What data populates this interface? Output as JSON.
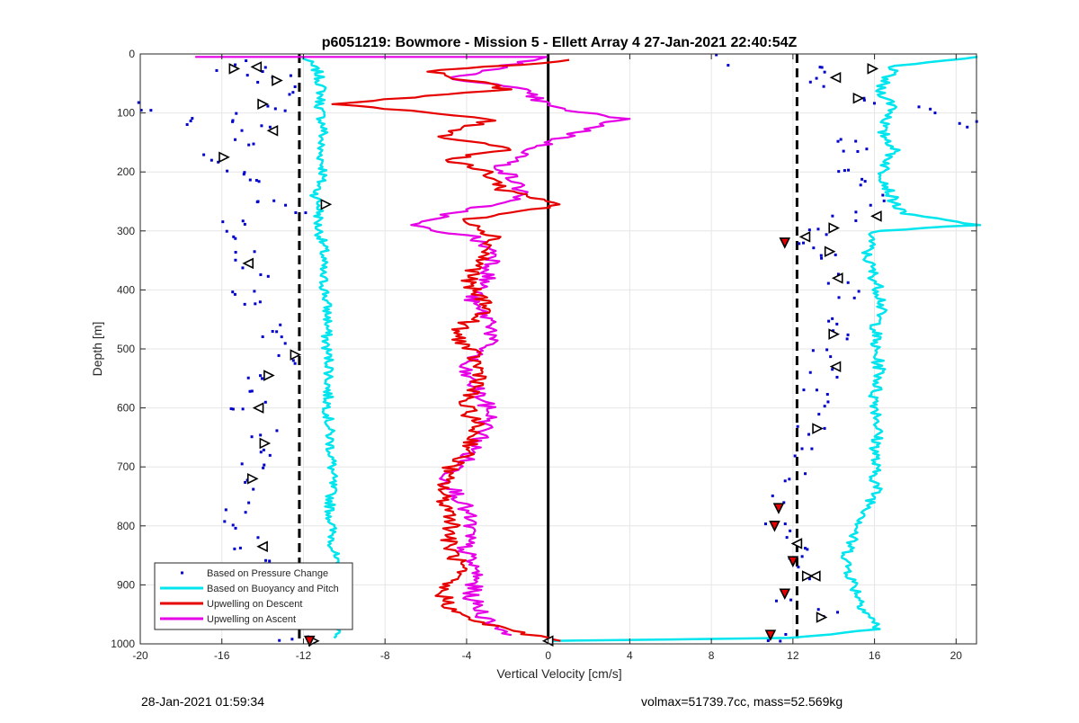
{
  "chart_data": {
    "type": "scatter",
    "title": "p6051219: Bowmore - Mission 5 - Ellett Array 4 27-Jan-2021 22:40:54Z",
    "xlabel": "Vertical Velocity [cm/s]",
    "ylabel": "Depth [m]",
    "xlim": [
      -20,
      21
    ],
    "ylim": [
      0,
      1000
    ],
    "y_reversed": true,
    "grid": true,
    "legend_position": "bottom-left",
    "x_ticks": [
      "-20",
      "-16",
      "-12",
      "-8",
      "-4",
      "0",
      "4",
      "8",
      "12",
      "16",
      "20"
    ],
    "y_ticks": [
      "0",
      "100",
      "200",
      "300",
      "400",
      "500",
      "600",
      "700",
      "800",
      "900",
      "1000"
    ],
    "reference_lines": [
      {
        "style": "dashed",
        "x": -12.2
      },
      {
        "style": "solid",
        "x": 0
      },
      {
        "style": "dashed",
        "x": 12.2
      }
    ],
    "series": [
      {
        "name": "Based on Pressure Change",
        "marker": "dot",
        "color": "#0000cc",
        "descent_points": [
          [
            -15.6,
            20
          ],
          [
            -14.2,
            40
          ],
          [
            -13.1,
            30
          ],
          [
            -12.6,
            60
          ],
          [
            -13.0,
            90
          ],
          [
            -15.3,
            110
          ],
          [
            -19.5,
            85
          ],
          [
            -17.4,
            120
          ],
          [
            -14.4,
            130
          ],
          [
            -15.0,
            150
          ],
          [
            -16.2,
            180
          ],
          [
            -15.2,
            200
          ],
          [
            -14.3,
            215
          ],
          [
            -13.7,
            240
          ],
          [
            -12.4,
            260
          ],
          [
            -15.2,
            280
          ],
          [
            -15.6,
            310
          ],
          [
            -14.9,
            340
          ],
          [
            -14.4,
            370
          ],
          [
            -15.1,
            400
          ],
          [
            -14.2,
            430
          ],
          [
            -13.8,
            460
          ],
          [
            -13.2,
            490
          ],
          [
            -13.0,
            520
          ],
          [
            -14.4,
            545
          ],
          [
            -14.6,
            580
          ],
          [
            -14.8,
            610
          ],
          [
            -14.1,
            640
          ],
          [
            -14.0,
            670
          ],
          [
            -14.5,
            700
          ],
          [
            -15.0,
            730
          ],
          [
            -15.3,
            770
          ],
          [
            -15.4,
            800
          ],
          [
            -14.6,
            830
          ],
          [
            -14.1,
            860
          ],
          [
            -13.8,
            900
          ],
          [
            -13.6,
            930
          ],
          [
            -13.2,
            960
          ],
          [
            -12.4,
            985
          ]
        ],
        "ascent_points": [
          [
            7.9,
            5
          ],
          [
            8.6,
            10
          ],
          [
            14.0,
            30
          ],
          [
            13.5,
            50
          ],
          [
            15.6,
            80
          ],
          [
            18.6,
            100
          ],
          [
            20.6,
            115
          ],
          [
            14.7,
            140
          ],
          [
            15.1,
            170
          ],
          [
            14.2,
            200
          ],
          [
            15.5,
            220
          ],
          [
            15.9,
            250
          ],
          [
            14.3,
            275
          ],
          [
            13.1,
            300
          ],
          [
            12.3,
            320
          ],
          [
            13.8,
            345
          ],
          [
            14.2,
            380
          ],
          [
            14.6,
            410
          ],
          [
            14.3,
            450
          ],
          [
            13.9,
            480
          ],
          [
            13.3,
            510
          ],
          [
            13.6,
            540
          ],
          [
            13.1,
            570
          ],
          [
            13.7,
            600
          ],
          [
            13.0,
            640
          ],
          [
            12.6,
            680
          ],
          [
            12.0,
            720
          ],
          [
            11.6,
            760
          ],
          [
            11.3,
            800
          ],
          [
            12.3,
            830
          ],
          [
            11.9,
            860
          ],
          [
            12.7,
            890
          ],
          [
            11.5,
            920
          ],
          [
            13.5,
            950
          ],
          [
            11.0,
            985
          ]
        ]
      },
      {
        "name": "Based on Buoyancy and Pitch",
        "color": "#00e5ee",
        "descent_profile": [
          [
            -12.0,
            5
          ],
          [
            -11.3,
            30
          ],
          [
            -11.1,
            60
          ],
          [
            -11.2,
            90
          ],
          [
            -11.0,
            130
          ],
          [
            -11.2,
            160
          ],
          [
            -11.0,
            200
          ],
          [
            -11.4,
            240
          ],
          [
            -11.2,
            260
          ],
          [
            -11.3,
            290
          ],
          [
            -11.0,
            330
          ],
          [
            -11.1,
            370
          ],
          [
            -10.9,
            410
          ],
          [
            -10.8,
            450
          ],
          [
            -10.9,
            490
          ],
          [
            -10.7,
            530
          ],
          [
            -10.8,
            570
          ],
          [
            -10.8,
            610
          ],
          [
            -10.7,
            650
          ],
          [
            -10.6,
            690
          ],
          [
            -10.6,
            730
          ],
          [
            -10.7,
            770
          ],
          [
            -10.6,
            810
          ],
          [
            -10.5,
            850
          ],
          [
            -10.5,
            890
          ],
          [
            -10.6,
            930
          ],
          [
            -10.4,
            960
          ],
          [
            -10.5,
            990
          ]
        ],
        "ascent_profile": [
          [
            21.0,
            5
          ],
          [
            17.0,
            20
          ],
          [
            16.2,
            60
          ],
          [
            17.0,
            90
          ],
          [
            16.3,
            130
          ],
          [
            17.0,
            160
          ],
          [
            16.4,
            200
          ],
          [
            16.8,
            240
          ],
          [
            17.3,
            270
          ],
          [
            21.0,
            290
          ],
          [
            16.0,
            300
          ],
          [
            15.6,
            340
          ],
          [
            16.0,
            380
          ],
          [
            16.4,
            420
          ],
          [
            16.1,
            460
          ],
          [
            16.0,
            500
          ],
          [
            16.3,
            540
          ],
          [
            16.0,
            580
          ],
          [
            16.2,
            620
          ],
          [
            16.1,
            660
          ],
          [
            16.0,
            700
          ],
          [
            16.1,
            740
          ],
          [
            15.6,
            780
          ],
          [
            14.9,
            820
          ],
          [
            14.6,
            860
          ],
          [
            15.0,
            900
          ],
          [
            15.5,
            940
          ],
          [
            16.2,
            975
          ],
          [
            11.9,
            990
          ],
          [
            0.0,
            995
          ]
        ]
      },
      {
        "name": "Upwelling on Descent",
        "color": "#e60000",
        "points": [
          [
            1.4,
            10
          ],
          [
            -5.9,
            30
          ],
          [
            -1.9,
            60
          ],
          [
            -10.5,
            85
          ],
          [
            -2.8,
            110
          ],
          [
            -5.2,
            140
          ],
          [
            -1.7,
            160
          ],
          [
            -5.0,
            180
          ],
          [
            -3.0,
            200
          ],
          [
            -2.2,
            230
          ],
          [
            0.7,
            255
          ],
          [
            -3.9,
            280
          ],
          [
            -2.6,
            310
          ],
          [
            -3.3,
            350
          ],
          [
            -4.0,
            390
          ],
          [
            -2.8,
            430
          ],
          [
            -4.6,
            470
          ],
          [
            -3.7,
            510
          ],
          [
            -3.2,
            550
          ],
          [
            -4.2,
            590
          ],
          [
            -3.5,
            630
          ],
          [
            -3.8,
            670
          ],
          [
            -5.0,
            710
          ],
          [
            -5.2,
            750
          ],
          [
            -4.6,
            790
          ],
          [
            -4.9,
            830
          ],
          [
            -4.3,
            870
          ],
          [
            -5.3,
            910
          ],
          [
            -4.5,
            950
          ],
          [
            -2.2,
            975
          ],
          [
            0.6,
            995
          ]
        ]
      },
      {
        "name": "Upwelling on Ascent",
        "color": "#e600e6",
        "points": [
          [
            -17.4,
            5
          ],
          [
            0.0,
            5
          ],
          [
            -4.7,
            40
          ],
          [
            -1.4,
            60
          ],
          [
            0.1,
            90
          ],
          [
            3.6,
            110
          ],
          [
            0.0,
            150
          ],
          [
            -2.3,
            190
          ],
          [
            -1.1,
            240
          ],
          [
            -6.9,
            290
          ],
          [
            -3.7,
            310
          ],
          [
            -2.5,
            340
          ],
          [
            -3.0,
            380
          ],
          [
            -3.8,
            420
          ],
          [
            -2.6,
            460
          ],
          [
            -3.1,
            500
          ],
          [
            -4.3,
            530
          ],
          [
            -3.5,
            570
          ],
          [
            -2.8,
            610
          ],
          [
            -3.3,
            650
          ],
          [
            -4.1,
            690
          ],
          [
            -5.0,
            720
          ],
          [
            -4.2,
            760
          ],
          [
            -3.8,
            800
          ],
          [
            -4.1,
            840
          ],
          [
            -3.5,
            880
          ],
          [
            -3.8,
            920
          ],
          [
            -3.0,
            960
          ],
          [
            -1.8,
            985
          ]
        ]
      }
    ],
    "triangle_markers": {
      "descent": [
        [
          -15.4,
          25
        ],
        [
          -14.3,
          22
        ],
        [
          -13.3,
          45
        ],
        [
          -14.0,
          85
        ],
        [
          -13.5,
          130
        ],
        [
          -15.9,
          175
        ],
        [
          -10.9,
          255
        ],
        [
          -14.7,
          355
        ],
        [
          -12.4,
          510
        ],
        [
          -13.7,
          545
        ],
        [
          -14.2,
          600
        ],
        [
          -13.9,
          660
        ],
        [
          -14.5,
          720
        ],
        [
          -14.0,
          835
        ],
        [
          -11.5,
          995
        ]
      ],
      "ascent": [
        [
          15.9,
          25
        ],
        [
          14.1,
          40
        ],
        [
          15.2,
          75
        ],
        [
          16.1,
          275
        ],
        [
          14.0,
          295
        ],
        [
          12.6,
          310
        ],
        [
          13.8,
          335
        ],
        [
          14.2,
          380
        ],
        [
          14.0,
          475
        ],
        [
          14.1,
          530
        ],
        [
          13.2,
          635
        ],
        [
          12.2,
          830
        ],
        [
          12.7,
          885
        ],
        [
          13.1,
          885
        ],
        [
          13.4,
          955
        ],
        [
          0.0,
          995
        ]
      ],
      "ascent_red": [
        [
          11.6,
          320
        ],
        [
          11.3,
          770
        ],
        [
          11.1,
          800
        ],
        [
          12.0,
          860
        ],
        [
          11.6,
          915
        ],
        [
          10.9,
          985
        ],
        [
          -11.7,
          995
        ]
      ]
    }
  },
  "legend": {
    "items": [
      {
        "label": "Based on Pressure Change",
        "color": "#0000cc",
        "kind": "dot"
      },
      {
        "label": "Based on Buoyancy and Pitch",
        "color": "#00e5ee",
        "kind": "line"
      },
      {
        "label": "Upwelling on Descent",
        "color": "#e60000",
        "kind": "line"
      },
      {
        "label": "Upwelling on Ascent",
        "color": "#e600e6",
        "kind": "line"
      }
    ]
  },
  "footer": {
    "timestamp": "28-Jan-2021 01:59:34",
    "mass_info": "volmax=51739.7cc, mass=52.569kg"
  }
}
